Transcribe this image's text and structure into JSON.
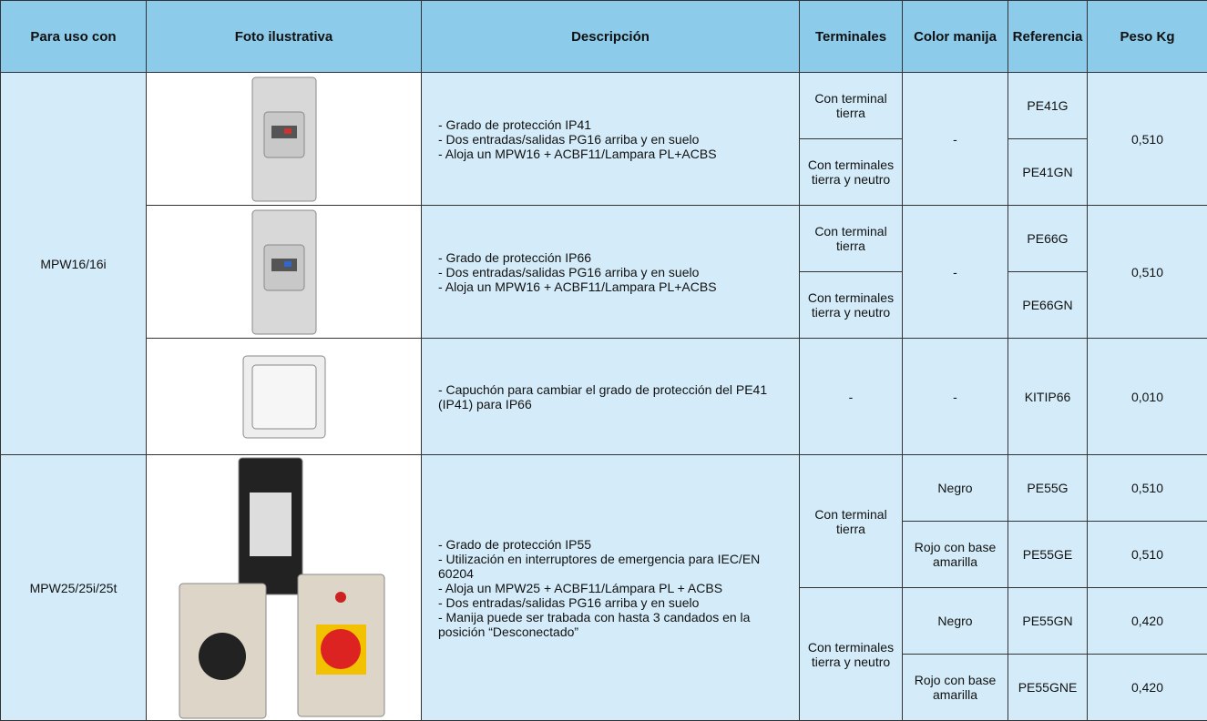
{
  "header": [
    "Para uso con",
    "Foto ilustrativa",
    "Descripción",
    "Terminales",
    "Color manija",
    "Referencia",
    "Peso Kg"
  ],
  "groups": [
    {
      "uso": "MPW16/16i",
      "items": [
        {
          "descripcion": [
            "- Grado de protección IP41",
            "- Dos entradas/salidas PG16 arriba y en suelo",
            "- Aloja un MPW16 + ACBF11/Lampara PL+ACBS"
          ],
          "terminales": [
            "Con terminal tierra",
            "Con terminales tierra y neutro"
          ],
          "color": [
            "-"
          ],
          "referencias": [
            "PE41G",
            "PE41GN"
          ],
          "peso": [
            "0,510"
          ]
        },
        {
          "descripcion": [
            "- Grado de protección IP66",
            "- Dos entradas/salidas PG16 arriba y en suelo",
            "- Aloja un MPW16 + ACBF11/Lampara PL+ACBS"
          ],
          "terminales": [
            "Con terminal tierra",
            "Con terminales tierra y neutro"
          ],
          "color": [
            "-"
          ],
          "referencias": [
            "PE66G",
            "PE66GN"
          ],
          "peso": [
            "0,510"
          ]
        },
        {
          "descripcion": [
            "- Capuchón para cambiar el grado de protección del PE41 (IP41) para IP66"
          ],
          "terminales": [
            "-"
          ],
          "color": [
            "-"
          ],
          "referencias": [
            "KITIP66"
          ],
          "peso": [
            "0,010"
          ]
        }
      ]
    },
    {
      "uso": "MPW25/25i/25t",
      "items": [
        {
          "descripcion": [
            "- Grado de protección IP55",
            "- Utilización en interruptores de emergencia para IEC/EN 60204",
            "- Aloja un MPW25 + ACBF11/Lámpara PL + ACBS",
            "- Dos entradas/salidas PG16 arriba y en suelo",
            "- Manija puede ser trabada con hasta 3 candados en la posición “Desconectado”"
          ],
          "terminales": [
            "Con terminal tierra",
            "Con terminales tierra y neutro"
          ],
          "color": [
            "Negro",
            "Rojo con base amarilla",
            "Negro",
            "Rojo con base amarilla"
          ],
          "referencias": [
            "PE55G",
            "PE55GE",
            "PE55GN",
            "PE55GNE"
          ],
          "peso": [
            "0,510",
            "0,510",
            "0,420",
            "0,420"
          ]
        }
      ]
    }
  ]
}
